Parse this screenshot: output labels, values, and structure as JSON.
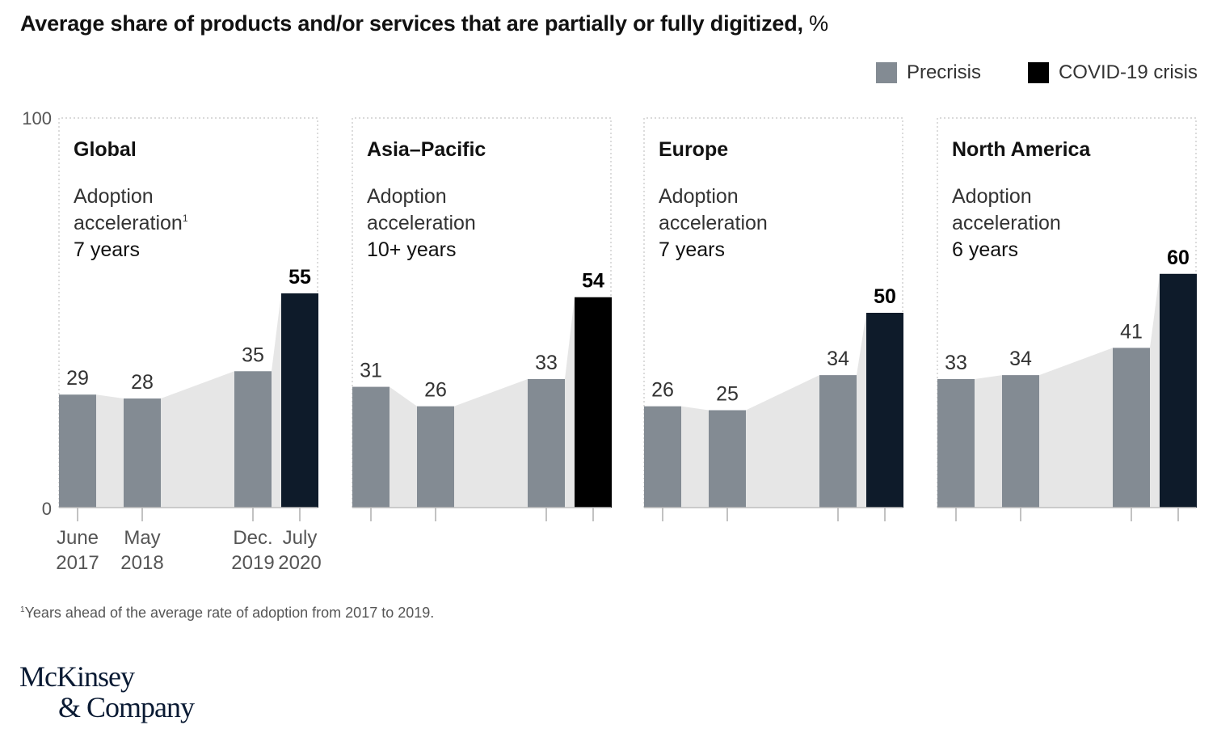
{
  "header": {
    "title": "Average share of products and/or services that are partially or fully digitized,",
    "title_unit": "%"
  },
  "legend": {
    "items": [
      {
        "label": "Precrisis",
        "color": "#838b93"
      },
      {
        "label": "COVID-19 crisis",
        "color": "#000000"
      }
    ]
  },
  "footnote": {
    "marker": "1",
    "text": "Years ahead of the average rate of adoption from 2017 to 2019."
  },
  "brand": {
    "line1": "McKinsey",
    "line2": "& Company"
  },
  "colors": {
    "precrisis": "#838b93",
    "covid_dark": "#0e1b2a",
    "covid_black": "#000000",
    "area_fill": "#e6e6e6",
    "axis": "#999999"
  },
  "chart_data": {
    "type": "bar",
    "title": "Average share of products and/or services that are partially or fully digitized, %",
    "ylim": [
      0,
      100
    ],
    "y_ticks": [
      "0",
      "100"
    ],
    "categories": [
      {
        "line1": "June",
        "line2": "2017"
      },
      {
        "line1": "May",
        "line2": "2018"
      },
      {
        "line1": "Dec.",
        "line2": "2019"
      },
      {
        "line1": "July",
        "line2": "2020"
      }
    ],
    "panels": [
      {
        "region": "Global",
        "accel_line1": "Adoption",
        "accel_line2": "acceleration",
        "accel_sup": "1",
        "accel_value": "7 years",
        "values": [
          29,
          28,
          35,
          55
        ],
        "covid_color": "#0e1b2a"
      },
      {
        "region": "Asia–Pacific",
        "accel_line1": "Adoption",
        "accel_line2": "acceleration",
        "accel_sup": "",
        "accel_value": "10+ years",
        "values": [
          31,
          26,
          33,
          54
        ],
        "covid_color": "#000000"
      },
      {
        "region": "Europe",
        "accel_line1": "Adoption",
        "accel_line2": "acceleration",
        "accel_sup": "",
        "accel_value": "7 years",
        "values": [
          26,
          25,
          34,
          50
        ],
        "covid_color": "#0e1b2a"
      },
      {
        "region": "North America",
        "accel_line1": "Adoption",
        "accel_line2": "acceleration",
        "accel_sup": "",
        "accel_value": "6 years",
        "values": [
          33,
          34,
          41,
          60
        ],
        "covid_color": "#0e1b2a"
      }
    ],
    "series": [
      {
        "name": "Precrisis"
      },
      {
        "name": "COVID-19 crisis"
      }
    ],
    "grid": false,
    "legend_position": "top-right"
  }
}
